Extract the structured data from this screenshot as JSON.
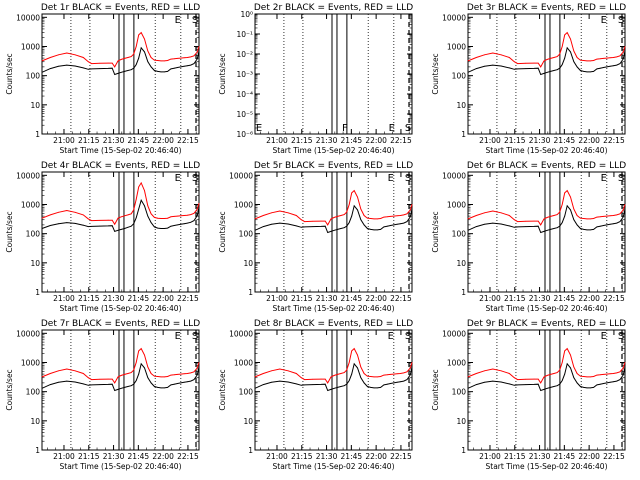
{
  "figure": {
    "panels": [
      {
        "title": "Det 1r BLACK = Events, RED = LLD",
        "xlabel": "Start Time (15-Sep-02 20:46:40)",
        "ylabel": "Counts/sec",
        "kind": "log",
        "ytick_labels": [
          "1",
          "10",
          "100",
          "1000",
          "10000"
        ],
        "series_set": "typical",
        "markers": [
          "F",
          "E",
          "S"
        ]
      },
      {
        "title": "Det 2r BLACK = Events, RED = LLD",
        "xlabel": "Start Time (15-Sep-02 20:46:40)",
        "ylabel": "Counts/sec",
        "kind": "tiny",
        "ytick_labels": [
          "10⁰",
          "10⁻¹",
          "10⁻²",
          "10⁻³",
          "10⁻⁴",
          "10⁻⁵",
          "10⁻⁶"
        ],
        "series_set": "none",
        "markers": [
          "F",
          "E",
          "S"
        ]
      },
      {
        "title": "Det 3r BLACK = Events, RED = LLD",
        "xlabel": "Start Time (15-Sep-02 20:46:40)",
        "ylabel": "Counts/sec",
        "kind": "log",
        "ytick_labels": [
          "1",
          "10",
          "100",
          "1000",
          "10000"
        ],
        "series_set": "typical",
        "markers": [
          "F",
          "E",
          "S"
        ]
      },
      {
        "title": "Det 4r BLACK = Events, RED = LLD",
        "xlabel": "Start Time (15-Sep-02 20:46:40)",
        "ylabel": "Counts/sec",
        "kind": "log",
        "ytick_labels": [
          "1",
          "10",
          "100",
          "1000",
          "10000"
        ],
        "series_set": "high",
        "markers": [
          "F",
          "E",
          "S"
        ]
      },
      {
        "title": "Det 5r BLACK = Events, RED = LLD",
        "xlabel": "Start Time (15-Sep-02 20:46:40)",
        "ylabel": "Counts/sec",
        "kind": "log",
        "ytick_labels": [
          "1",
          "10",
          "100",
          "1000",
          "10000"
        ],
        "series_set": "typical",
        "markers": [
          "F",
          "E",
          "S"
        ]
      },
      {
        "title": "Det 6r BLACK = Events, RED = LLD",
        "xlabel": "Start Time (15-Sep-02 20:46:40)",
        "ylabel": "Counts/sec",
        "kind": "log",
        "ytick_labels": [
          "1",
          "10",
          "100",
          "1000",
          "10000"
        ],
        "series_set": "typical",
        "markers": [
          "F",
          "E",
          "S"
        ]
      },
      {
        "title": "Det 7r BLACK = Events, RED = LLD",
        "xlabel": "Start Time (15-Sep-02 20:46:40)",
        "ylabel": "Counts/sec",
        "kind": "log",
        "ytick_labels": [
          "1",
          "10",
          "100",
          "1000",
          "10000"
        ],
        "series_set": "typical",
        "markers": [
          "F",
          "E",
          "S"
        ]
      },
      {
        "title": "Det 8r BLACK = Events, RED = LLD",
        "xlabel": "Start Time (15-Sep-02 20:46:40)",
        "ylabel": "Counts/sec",
        "kind": "log",
        "ytick_labels": [
          "1",
          "10",
          "100",
          "1000",
          "10000"
        ],
        "series_set": "typical",
        "markers": [
          "F",
          "E",
          "S"
        ]
      },
      {
        "title": "Det 9r BLACK = Events, RED = LLD",
        "xlabel": "Start Time (15-Sep-02 20:46:40)",
        "ylabel": "Counts/sec",
        "kind": "log",
        "ytick_labels": [
          "1",
          "10",
          "100",
          "1000",
          "10000"
        ],
        "series_set": "typical",
        "markers": [
          "F",
          "E",
          "S"
        ]
      }
    ]
  },
  "chart_data": {
    "type": "line",
    "layout": "3x3 grid of small multiples",
    "x_tick_labels": [
      "21:00",
      "21:15",
      "21:30",
      "21:45",
      "22:00",
      "22:15"
    ],
    "x_range_minutes_after_start": [
      0,
      95
    ],
    "x_tick_minutes_after_start": [
      13.3,
      28.3,
      43.3,
      58.3,
      73.3,
      88.3
    ],
    "yscale": "log",
    "ylim": [
      1,
      13000
    ],
    "tiny_panel_ylim": [
      1e-06,
      1
    ],
    "solid_vertical_lines_minutes": [
      46.6,
      49.6,
      55.6
    ],
    "dotted_vertical_lines_minutes": [
      17.5,
      29.0,
      68.5,
      84.0
    ],
    "dashed_vertical_lines_minutes": [
      95
    ],
    "marker_positions_minutes": {
      "F": 55.6,
      "E": 84.0,
      "S": 95
    },
    "colors": {
      "events": "#000000",
      "lld": "#ff0000",
      "axes": "#000000"
    },
    "series_sets": {
      "typical": [
        {
          "name": "Events",
          "color": "#000000",
          "x": [
            0,
            5,
            10,
            15,
            20,
            25,
            28,
            30,
            35,
            40,
            42.5,
            44,
            46,
            48,
            50,
            52,
            54,
            55.5,
            57,
            58.5,
            60,
            62,
            64,
            66,
            68,
            70,
            72,
            74,
            76,
            78,
            80,
            82,
            84,
            86,
            88,
            90,
            92,
            94,
            95
          ],
          "y": [
            130,
            175,
            210,
            230,
            215,
            185,
            165,
            170,
            175,
            178,
            180,
            110,
            120,
            130,
            140,
            150,
            160,
            180,
            240,
            400,
            900,
            650,
            300,
            200,
            150,
            140,
            135,
            135,
            140,
            170,
            180,
            190,
            200,
            210,
            220,
            230,
            260,
            380,
            700
          ]
        },
        {
          "name": "LLD",
          "color": "#ff0000",
          "x": [
            0,
            5,
            10,
            15,
            20,
            25,
            28,
            30,
            35,
            40,
            42.5,
            44,
            46,
            48,
            50,
            52,
            54,
            55.5,
            57,
            58.5,
            60,
            62,
            64,
            66,
            68,
            70,
            72,
            74,
            76,
            78,
            80,
            82,
            84,
            86,
            88,
            90,
            92,
            94,
            95
          ],
          "y": [
            320,
            420,
            520,
            600,
            520,
            420,
            300,
            260,
            265,
            270,
            270,
            200,
            320,
            360,
            390,
            420,
            450,
            550,
            1000,
            2500,
            3000,
            1800,
            700,
            420,
            340,
            330,
            320,
            320,
            330,
            370,
            380,
            390,
            400,
            410,
            420,
            440,
            480,
            650,
            1000
          ]
        }
      ],
      "high": [
        {
          "name": "Events",
          "color": "#000000",
          "x": [
            0,
            5,
            10,
            15,
            20,
            25,
            28,
            30,
            35,
            40,
            42.5,
            44,
            46,
            48,
            50,
            52,
            54,
            55.5,
            57,
            58.5,
            60,
            62,
            64,
            66,
            68,
            70,
            72,
            74,
            76,
            78,
            80,
            82,
            84,
            86,
            88,
            90,
            92,
            94,
            95
          ],
          "y": [
            150,
            190,
            220,
            240,
            225,
            195,
            175,
            178,
            182,
            185,
            188,
            120,
            130,
            140,
            150,
            165,
            180,
            220,
            350,
            700,
            1400,
            900,
            400,
            240,
            170,
            155,
            150,
            150,
            155,
            180,
            190,
            200,
            210,
            220,
            230,
            245,
            280,
            420,
            800
          ]
        },
        {
          "name": "LLD",
          "color": "#ff0000",
          "x": [
            0,
            5,
            10,
            15,
            20,
            25,
            28,
            30,
            35,
            40,
            42.5,
            44,
            46,
            48,
            50,
            52,
            54,
            55.5,
            57,
            58.5,
            60,
            62,
            64,
            66,
            68,
            70,
            72,
            74,
            76,
            78,
            80,
            82,
            84,
            86,
            88,
            90,
            92,
            94,
            95
          ],
          "y": [
            340,
            440,
            540,
            620,
            540,
            440,
            320,
            280,
            285,
            290,
            290,
            210,
            340,
            380,
            410,
            440,
            480,
            650,
            1500,
            4000,
            5500,
            3000,
            900,
            480,
            360,
            340,
            330,
            330,
            340,
            380,
            390,
            400,
            410,
            420,
            430,
            450,
            500,
            700,
            1100
          ]
        }
      ],
      "none": []
    }
  }
}
